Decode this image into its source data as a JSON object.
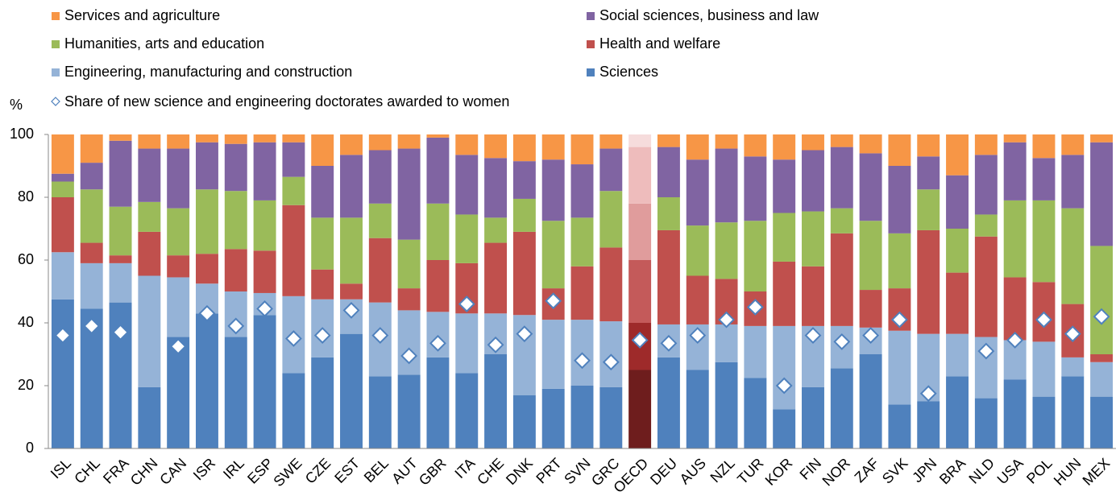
{
  "chart_data": {
    "type": "stacked_bar",
    "y_label": "%",
    "categories": [
      "ISL",
      "CHL",
      "FRA",
      "CHN",
      "CAN",
      "ISR",
      "IRL",
      "ESP",
      "SWE",
      "CZE",
      "EST",
      "BEL",
      "AUT",
      "GBR",
      "ITA",
      "CHE",
      "DNK",
      "PRT",
      "SVN",
      "GRC",
      "OECD",
      "DEU",
      "AUS",
      "NZL",
      "TUR",
      "KOR",
      "FIN",
      "NOR",
      "ZAF",
      "SVK",
      "JPN",
      "BRA",
      "NLD",
      "USA",
      "POL",
      "HUN",
      "MEX"
    ],
    "highlight": "OECD",
    "series": [
      {
        "name": "Services and agriculture",
        "color": "#f79646",
        "highlight_color": "#f6dcdc",
        "values": [
          12.5,
          9,
          2,
          4.5,
          4.5,
          2.5,
          3,
          2.5,
          2.5,
          10,
          6.5,
          5,
          4.5,
          1,
          6.5,
          7.5,
          8.5,
          8,
          9.5,
          4.5,
          4,
          4,
          8,
          4.5,
          7,
          8,
          5,
          4,
          6,
          10,
          7,
          13,
          6.5,
          2.5,
          7.5,
          6.5,
          2.5
        ]
      },
      {
        "name": "Social sciences, business and law",
        "color": "#8064a2",
        "highlight_color": "#eebcbc",
        "values": [
          2.5,
          8.5,
          21,
          17,
          19,
          15,
          15,
          18.5,
          11,
          16.5,
          20,
          17,
          29,
          21,
          19,
          19,
          12,
          19.5,
          17,
          13.5,
          18,
          16,
          21,
          23.5,
          20.5,
          17,
          19.5,
          19.5,
          21.5,
          21.5,
          10.5,
          17,
          19,
          18.5,
          13.5,
          17,
          33
        ]
      },
      {
        "name": "Humanities, arts and education",
        "color": "#9bbb59",
        "highlight_color": "#e09c9c",
        "values": [
          5,
          17,
          15.5,
          9.5,
          15,
          20.5,
          18.5,
          16,
          9,
          16.5,
          21,
          11,
          15.5,
          18,
          15.5,
          8,
          10.5,
          21.5,
          15.5,
          18,
          18,
          10.5,
          16,
          18,
          22.5,
          15.5,
          17.5,
          8,
          22,
          17.5,
          13,
          14,
          7,
          24.5,
          26,
          30.5,
          34.5
        ]
      },
      {
        "name": "Health and welfare",
        "color": "#c0504d",
        "highlight_color": "#c45a5a",
        "values": [
          17.5,
          6.5,
          2.5,
          14,
          7,
          9.5,
          13.5,
          13.5,
          29,
          9.5,
          5,
          20.5,
          7,
          16.5,
          16,
          22.5,
          26.5,
          10,
          17,
          23.5,
          20,
          30,
          15.5,
          14.5,
          11,
          20.5,
          19,
          29.5,
          12,
          13.5,
          33,
          19.5,
          32,
          20,
          19,
          17,
          2.5
        ]
      },
      {
        "name": "Engineering, manufacturing and construction",
        "color": "#95b3d7",
        "highlight_color": "#9e2a2a",
        "values": [
          15,
          14.5,
          12.5,
          35.5,
          19,
          9.5,
          14.5,
          7,
          24.5,
          18.5,
          11,
          23.5,
          20.5,
          14.5,
          19,
          13,
          25.5,
          22,
          21,
          21,
          15,
          10.5,
          14.5,
          12,
          16.5,
          26.5,
          19.5,
          13.5,
          8.5,
          23.5,
          21.5,
          13.5,
          19.5,
          12.5,
          17.5,
          6,
          11
        ]
      },
      {
        "name": "Sciences",
        "color": "#4f81bd",
        "highlight_color": "#6e1d1d",
        "values": [
          47.5,
          44.5,
          46.5,
          19.5,
          35.5,
          43,
          35.5,
          42.5,
          24,
          29,
          36.5,
          23,
          23.5,
          29,
          24,
          30,
          17,
          19,
          20,
          19.5,
          25,
          29,
          25,
          27.5,
          22.5,
          12.5,
          19.5,
          25.5,
          30,
          14,
          15,
          23,
          16,
          22,
          16.5,
          23,
          16.5
        ]
      }
    ],
    "markers": {
      "name": "Share of new science and engineering doctorates awarded to women",
      "color": "#4f81bd",
      "values": [
        36,
        39,
        37,
        null,
        32.5,
        43,
        39,
        44.5,
        35,
        36,
        44,
        36,
        29.5,
        33.5,
        46,
        33,
        36.5,
        47,
        28,
        27.5,
        34.5,
        33.5,
        36,
        41,
        45,
        20,
        36,
        34,
        36,
        41,
        17.5,
        null,
        31,
        34.5,
        41,
        36.5,
        42
      ]
    },
    "ylim": [
      0,
      100
    ],
    "yticks": [
      0,
      20,
      40,
      60,
      80,
      100
    ],
    "grid": false
  }
}
